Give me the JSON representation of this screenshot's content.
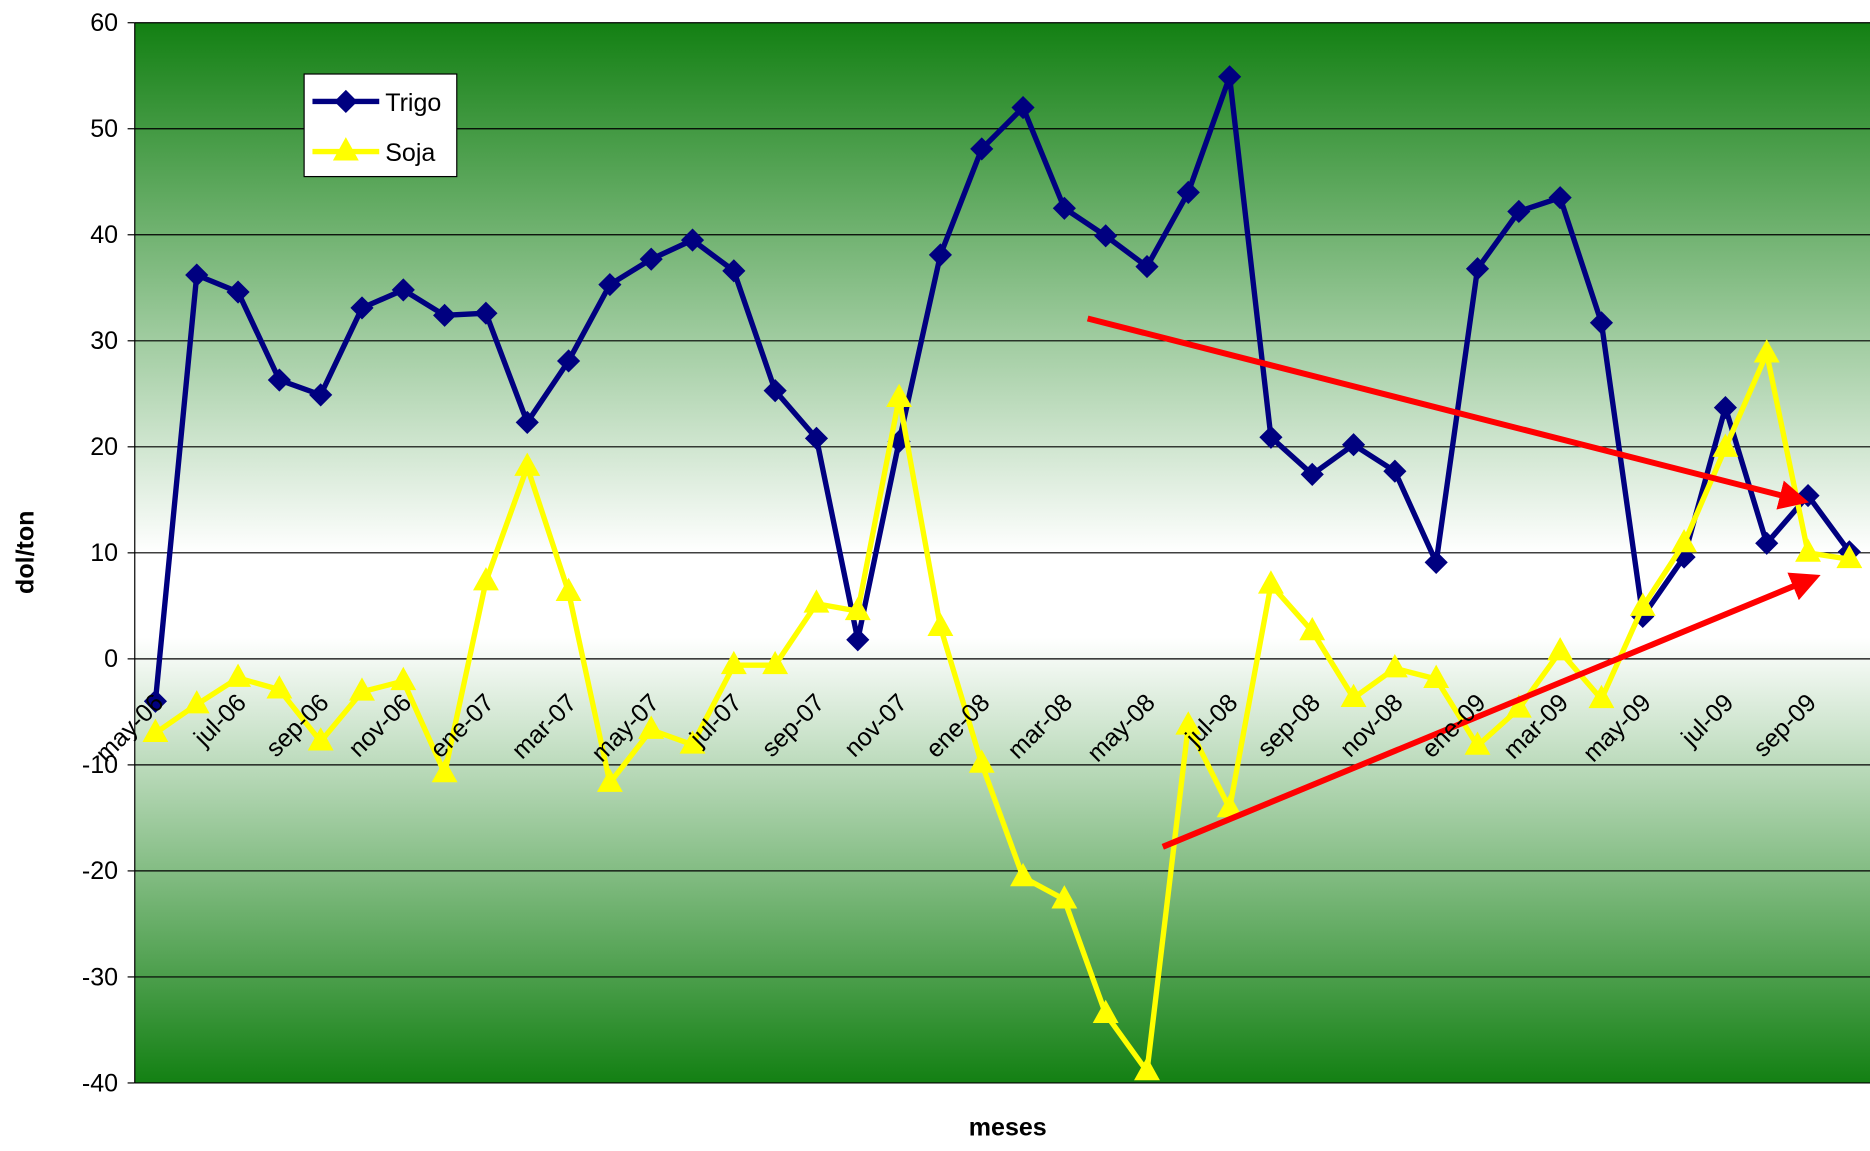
{
  "chart_data": {
    "type": "line",
    "x_label": "meses",
    "y_label": "dol/ton",
    "categories": [
      "may-06",
      null,
      "jul-06",
      null,
      "sep-06",
      null,
      "nov-06",
      null,
      "ene-07",
      null,
      "mar-07",
      null,
      "may-07",
      null,
      "jul-07",
      null,
      "sep-07",
      null,
      "nov-07",
      null,
      "ene-08",
      null,
      "mar-08",
      null,
      "may-08",
      null,
      "jul-08",
      null,
      "sep-08",
      null,
      "nov-08",
      null,
      "ene-09",
      null,
      "mar-09",
      null,
      "may-09",
      null,
      "jul-09",
      null,
      "sep-09",
      null
    ],
    "series": [
      {
        "name": "Trigo",
        "color": "#000080",
        "marker": "diamond",
        "values": [
          -4,
          36.2,
          34.6,
          26.3,
          24.9,
          33.1,
          34.8,
          32.4,
          32.6,
          22.3,
          28.1,
          35.3,
          37.7,
          39.5,
          36.6,
          25.3,
          20.8,
          1.8,
          20.5,
          38.1,
          48.1,
          52.0,
          42.5,
          39.9,
          37.0,
          44.0,
          54.9,
          20.9,
          17.4,
          20.2,
          17.7,
          9.1,
          36.8,
          42.2,
          43.5,
          31.7,
          4.0,
          9.6,
          23.7,
          10.9,
          15.4,
          10.1
        ]
      },
      {
        "name": "Soja",
        "color": "#ffff00",
        "marker": "triangle",
        "values": [
          -7,
          -4.3,
          -1.8,
          -2.9,
          -7.8,
          -3.1,
          -2.1,
          -10.8,
          7.3,
          18.1,
          6.3,
          -11.7,
          -6.7,
          -8.1,
          -0.6,
          -0.6,
          5.2,
          4.5,
          24.6,
          3.0,
          -9.9,
          -20.6,
          -22.7,
          -33.5,
          -38.9,
          -6.3,
          -14.1,
          7.0,
          2.6,
          -3.7,
          -0.9,
          -1.9,
          -8.2,
          -4.7,
          0.7,
          -3.8,
          4.9,
          10.9,
          19.9,
          28.8,
          10.0,
          9.4
        ]
      }
    ],
    "ylim": [
      -40,
      60
    ],
    "yticks": [
      -40,
      -30,
      -20,
      -10,
      0,
      10,
      20,
      30,
      40,
      50,
      60
    ],
    "grid": true,
    "legend": "upper left"
  }
}
